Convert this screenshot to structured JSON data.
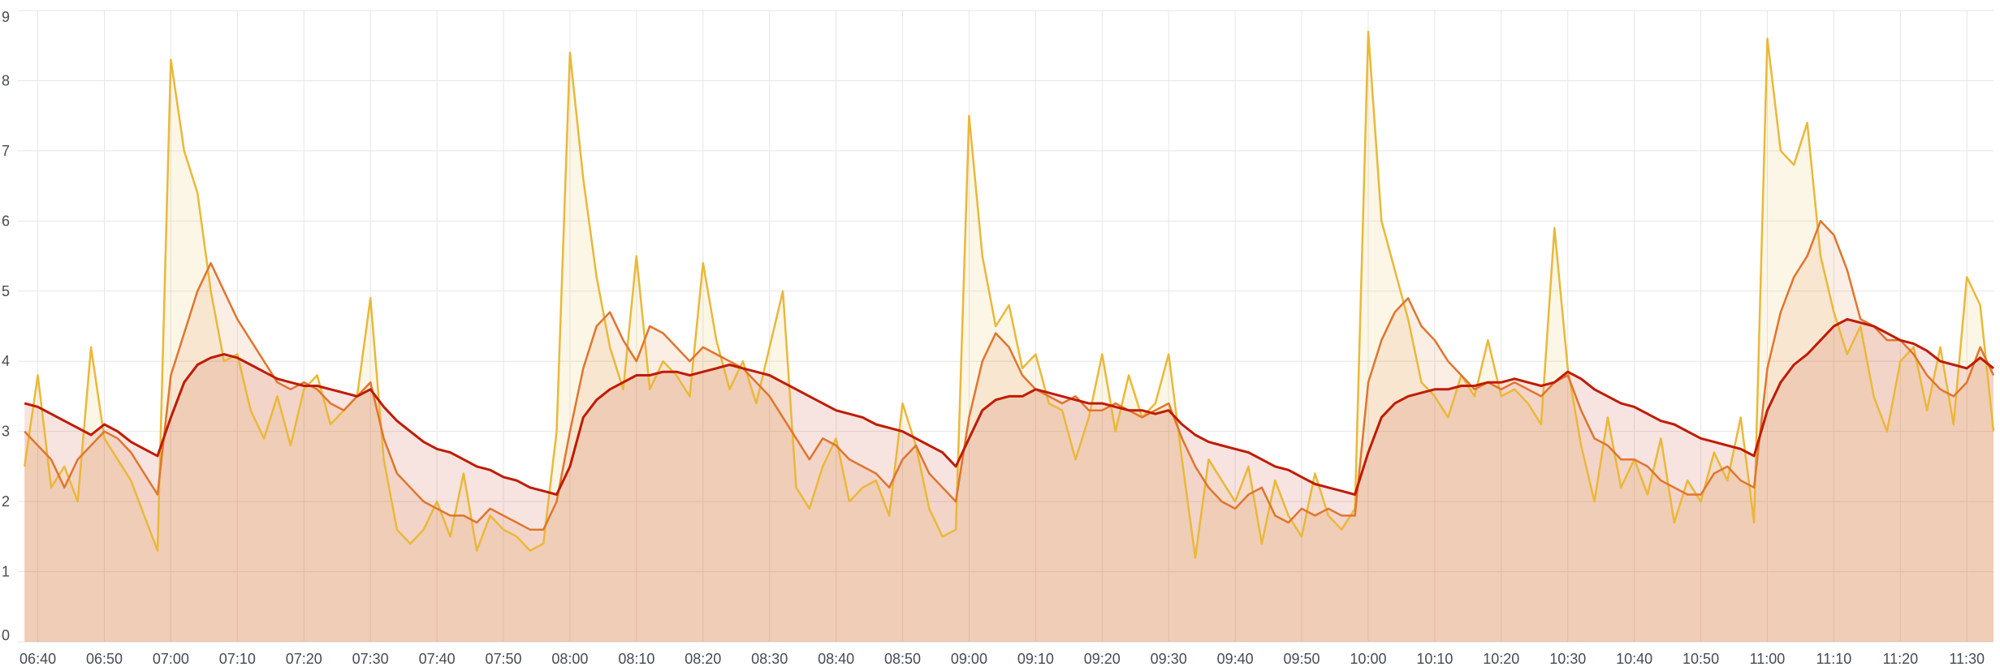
{
  "chart_data": {
    "type": "line",
    "x": [
      "06:38",
      "06:40",
      "06:42",
      "06:44",
      "06:46",
      "06:48",
      "06:50",
      "06:52",
      "06:54",
      "06:56",
      "06:58",
      "07:00",
      "07:02",
      "07:04",
      "07:06",
      "07:08",
      "07:10",
      "07:12",
      "07:14",
      "07:16",
      "07:18",
      "07:20",
      "07:22",
      "07:24",
      "07:26",
      "07:28",
      "07:30",
      "07:32",
      "07:34",
      "07:36",
      "07:38",
      "07:40",
      "07:42",
      "07:44",
      "07:46",
      "07:48",
      "07:50",
      "07:52",
      "07:54",
      "07:56",
      "07:58",
      "08:00",
      "08:02",
      "08:04",
      "08:06",
      "08:08",
      "08:10",
      "08:12",
      "08:14",
      "08:16",
      "08:18",
      "08:20",
      "08:22",
      "08:24",
      "08:26",
      "08:28",
      "08:30",
      "08:32",
      "08:34",
      "08:36",
      "08:38",
      "08:40",
      "08:42",
      "08:44",
      "08:46",
      "08:48",
      "08:50",
      "08:52",
      "08:54",
      "08:56",
      "08:58",
      "09:00",
      "09:02",
      "09:04",
      "09:06",
      "09:08",
      "09:10",
      "09:12",
      "09:14",
      "09:16",
      "09:18",
      "09:20",
      "09:22",
      "09:24",
      "09:26",
      "09:28",
      "09:30",
      "09:32",
      "09:34",
      "09:36",
      "09:38",
      "09:40",
      "09:42",
      "09:44",
      "09:46",
      "09:48",
      "09:50",
      "09:52",
      "09:54",
      "09:56",
      "09:58",
      "10:00",
      "10:02",
      "10:04",
      "10:06",
      "10:08",
      "10:10",
      "10:12",
      "10:14",
      "10:16",
      "10:18",
      "10:20",
      "10:22",
      "10:24",
      "10:26",
      "10:28",
      "10:30",
      "10:32",
      "10:34",
      "10:36",
      "10:38",
      "10:40",
      "10:42",
      "10:44",
      "10:46",
      "10:48",
      "10:50",
      "10:52",
      "10:54",
      "10:56",
      "10:58",
      "11:00",
      "11:02",
      "11:04",
      "11:06",
      "11:08",
      "11:10",
      "11:12",
      "11:14",
      "11:16",
      "11:18",
      "11:20",
      "11:22",
      "11:24",
      "11:26",
      "11:28",
      "11:30",
      "11:32",
      "11:34"
    ],
    "series": [
      {
        "color": "#eab839",
        "values": [
          2.5,
          3.8,
          2.2,
          2.5,
          2.0,
          4.2,
          2.9,
          2.6,
          2.3,
          1.8,
          1.3,
          8.3,
          7.0,
          6.4,
          5.0,
          4.0,
          4.1,
          3.3,
          2.9,
          3.5,
          2.8,
          3.6,
          3.8,
          3.1,
          3.3,
          3.5,
          4.9,
          2.6,
          1.6,
          1.4,
          1.6,
          2.0,
          1.5,
          2.4,
          1.3,
          1.8,
          1.6,
          1.5,
          1.3,
          1.4,
          3.0,
          8.4,
          6.6,
          5.2,
          4.2,
          3.6,
          5.5,
          3.6,
          4.0,
          3.8,
          3.5,
          5.4,
          4.3,
          3.6,
          4.0,
          3.4,
          4.2,
          5.0,
          2.2,
          1.9,
          2.5,
          2.9,
          2.0,
          2.2,
          2.3,
          1.8,
          3.4,
          2.8,
          1.9,
          1.5,
          1.6,
          7.5,
          5.5,
          4.5,
          4.8,
          3.9,
          4.1,
          3.4,
          3.3,
          2.6,
          3.2,
          4.1,
          3.0,
          3.8,
          3.2,
          3.4,
          4.1,
          2.6,
          1.2,
          2.6,
          2.3,
          2.0,
          2.5,
          1.4,
          2.3,
          1.8,
          1.5,
          2.4,
          1.8,
          1.6,
          1.9,
          8.7,
          6.0,
          5.3,
          4.6,
          3.7,
          3.5,
          3.2,
          3.8,
          3.5,
          4.3,
          3.5,
          3.6,
          3.4,
          3.1,
          5.9,
          3.9,
          2.8,
          2.0,
          3.2,
          2.2,
          2.6,
          2.1,
          2.9,
          1.7,
          2.3,
          2.0,
          2.7,
          2.3,
          3.2,
          1.7,
          8.6,
          7.0,
          6.8,
          7.4,
          5.5,
          4.7,
          4.1,
          4.5,
          3.5,
          3.0,
          4.0,
          4.2,
          3.3,
          4.2,
          3.1,
          5.2,
          4.8,
          3.0
        ]
      },
      {
        "color": "#e0752d",
        "values": [
          3.0,
          2.8,
          2.6,
          2.2,
          2.6,
          2.8,
          3.0,
          2.9,
          2.7,
          2.4,
          2.1,
          3.8,
          4.4,
          5.0,
          5.4,
          5.0,
          4.6,
          4.3,
          4.0,
          3.7,
          3.6,
          3.7,
          3.6,
          3.4,
          3.3,
          3.5,
          3.7,
          2.9,
          2.4,
          2.2,
          2.0,
          1.9,
          1.8,
          1.8,
          1.7,
          1.9,
          1.8,
          1.7,
          1.6,
          1.6,
          2.0,
          3.0,
          3.9,
          4.5,
          4.7,
          4.3,
          4.0,
          4.5,
          4.4,
          4.2,
          4.0,
          4.2,
          4.1,
          4.0,
          3.9,
          3.7,
          3.5,
          3.2,
          2.9,
          2.6,
          2.9,
          2.8,
          2.6,
          2.5,
          2.4,
          2.2,
          2.6,
          2.8,
          2.4,
          2.2,
          2.0,
          3.2,
          4.0,
          4.4,
          4.2,
          3.8,
          3.6,
          3.5,
          3.4,
          3.5,
          3.3,
          3.3,
          3.4,
          3.3,
          3.2,
          3.3,
          3.4,
          2.9,
          2.5,
          2.2,
          2.0,
          1.9,
          2.1,
          2.2,
          1.8,
          1.7,
          1.9,
          1.8,
          1.9,
          1.8,
          1.8,
          3.7,
          4.3,
          4.7,
          4.9,
          4.5,
          4.3,
          4.0,
          3.8,
          3.6,
          3.7,
          3.6,
          3.7,
          3.6,
          3.5,
          3.7,
          3.8,
          3.3,
          2.9,
          2.8,
          2.6,
          2.6,
          2.5,
          2.3,
          2.2,
          2.1,
          2.1,
          2.4,
          2.5,
          2.3,
          2.2,
          3.9,
          4.7,
          5.2,
          5.5,
          6.0,
          5.8,
          5.3,
          4.6,
          4.5,
          4.3,
          4.3,
          4.1,
          3.8,
          3.6,
          3.5,
          3.7,
          4.2,
          3.8
        ]
      },
      {
        "color": "#bf1b00",
        "values": [
          3.4,
          3.35,
          3.25,
          3.15,
          3.05,
          2.95,
          3.1,
          3.0,
          2.85,
          2.75,
          2.65,
          3.2,
          3.7,
          3.95,
          4.05,
          4.1,
          4.05,
          3.95,
          3.85,
          3.75,
          3.7,
          3.65,
          3.65,
          3.6,
          3.55,
          3.5,
          3.6,
          3.35,
          3.15,
          3.0,
          2.85,
          2.75,
          2.7,
          2.6,
          2.5,
          2.45,
          2.35,
          2.3,
          2.2,
          2.15,
          2.1,
          2.5,
          3.2,
          3.45,
          3.6,
          3.7,
          3.8,
          3.8,
          3.85,
          3.85,
          3.8,
          3.85,
          3.9,
          3.95,
          3.9,
          3.85,
          3.8,
          3.7,
          3.6,
          3.5,
          3.4,
          3.3,
          3.25,
          3.2,
          3.1,
          3.05,
          3.0,
          2.9,
          2.8,
          2.7,
          2.5,
          2.9,
          3.3,
          3.45,
          3.5,
          3.5,
          3.6,
          3.55,
          3.5,
          3.45,
          3.4,
          3.4,
          3.35,
          3.3,
          3.3,
          3.25,
          3.3,
          3.1,
          2.95,
          2.85,
          2.8,
          2.75,
          2.7,
          2.6,
          2.5,
          2.45,
          2.35,
          2.25,
          2.2,
          2.15,
          2.1,
          2.7,
          3.2,
          3.4,
          3.5,
          3.55,
          3.6,
          3.6,
          3.65,
          3.65,
          3.7,
          3.7,
          3.75,
          3.7,
          3.65,
          3.7,
          3.85,
          3.75,
          3.6,
          3.5,
          3.4,
          3.35,
          3.25,
          3.15,
          3.1,
          3.0,
          2.9,
          2.85,
          2.8,
          2.75,
          2.65,
          3.3,
          3.7,
          3.95,
          4.1,
          4.3,
          4.5,
          4.6,
          4.55,
          4.5,
          4.4,
          4.3,
          4.25,
          4.15,
          4.0,
          3.95,
          3.9,
          4.05,
          3.9
        ]
      }
    ],
    "xlim": [
      "06:37",
      "11:34"
    ],
    "xticks": [
      "06:40",
      "06:50",
      "07:00",
      "07:10",
      "07:20",
      "07:30",
      "07:40",
      "07:50",
      "08:00",
      "08:10",
      "08:20",
      "08:30",
      "08:40",
      "08:50",
      "09:00",
      "09:10",
      "09:20",
      "09:30",
      "09:40",
      "09:50",
      "10:00",
      "10:10",
      "10:20",
      "10:30",
      "10:40",
      "10:50",
      "11:00",
      "11:10",
      "11:20",
      "11:30"
    ],
    "ylim": [
      0,
      9
    ],
    "yticks": [
      0,
      1,
      2,
      3,
      4,
      5,
      6,
      7,
      8,
      9
    ],
    "grid": true
  }
}
